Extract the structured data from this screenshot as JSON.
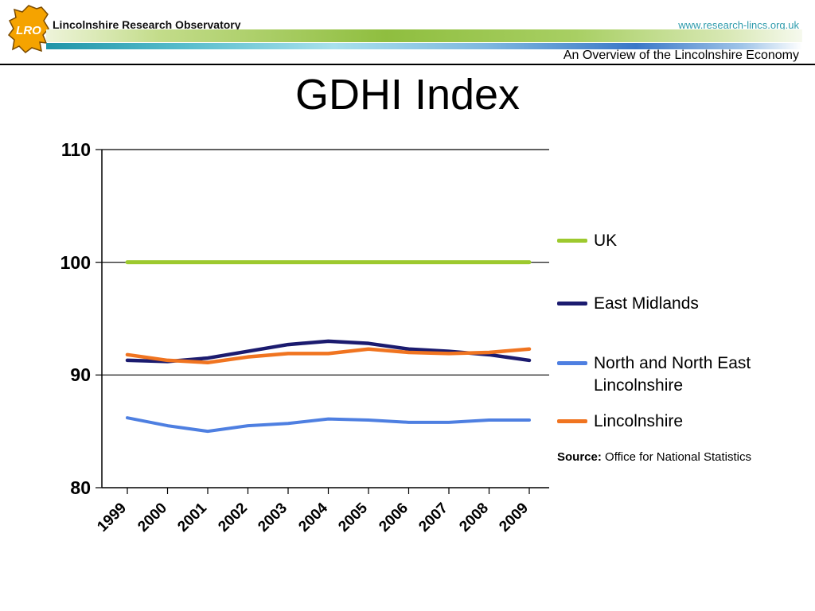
{
  "header": {
    "logo_text": "LRO",
    "org_name": "Lincolnshire Research Observatory",
    "website": "www.research-lincs.org.uk",
    "subtitle": "An Overview of the Lincolnshire Economy"
  },
  "title": "GDHI Index",
  "source": {
    "label": "Source:",
    "text": " Office for National Statistics"
  },
  "colors": {
    "link_teal": "#2E9BAB",
    "uk_green": "#9DC92E",
    "east_midlands_navy": "#1B1B6F",
    "nnel_blue": "#4E7FE1",
    "lincolnshire_orange": "#F07420",
    "logo_orange": "#F5A300"
  },
  "chart_data": {
    "type": "line",
    "title": "GDHI Index",
    "x": [
      "1999",
      "2000",
      "2001",
      "2002",
      "2003",
      "2004",
      "2005",
      "2006",
      "2007",
      "2008",
      "2009"
    ],
    "series": [
      {
        "name": "UK",
        "color": "#9DC92E",
        "values": [
          100,
          100,
          100,
          100,
          100,
          100,
          100,
          100,
          100,
          100,
          100
        ]
      },
      {
        "name": "East Midlands",
        "color": "#1B1B6F",
        "values": [
          91.3,
          91.2,
          91.5,
          92.1,
          92.7,
          93.0,
          92.8,
          92.3,
          92.1,
          91.8,
          91.3
        ]
      },
      {
        "name": "North and North East Lincolnshire",
        "color": "#4E7FE1",
        "values": [
          86.2,
          85.5,
          85.0,
          85.5,
          85.7,
          86.1,
          86.0,
          85.8,
          85.8,
          86.0,
          86.0
        ]
      },
      {
        "name": "Lincolnshire",
        "color": "#F07420",
        "values": [
          91.8,
          91.3,
          91.1,
          91.6,
          91.9,
          91.9,
          92.3,
          92.0,
          91.9,
          92.0,
          92.3
        ]
      }
    ],
    "ylim": [
      80,
      110
    ],
    "yticks": [
      80,
      90,
      100,
      110
    ],
    "grid": true,
    "legend_position": "right",
    "source": "Office for National Statistics"
  }
}
